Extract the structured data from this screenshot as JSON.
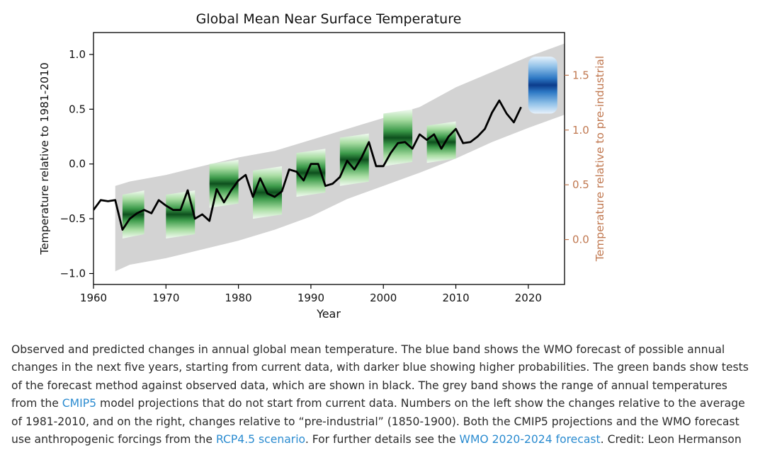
{
  "chart_data": {
    "type": "line",
    "title": "Global Mean Near Surface Temperature",
    "xlabel": "Year",
    "ylabel": "Temperature relative to 1981-2010",
    "ylabel_right": "Temperature relative to pre-industrial",
    "xlim": [
      1960,
      2025
    ],
    "ylim": [
      -1.1,
      1.2
    ],
    "ylim_right_offset": 0.69,
    "x_ticks": [
      "1960",
      "1970",
      "1980",
      "1990",
      "2000",
      "2010",
      "2020"
    ],
    "y_ticks": [
      "1.0",
      "0.5",
      "0.0",
      "−0.5",
      "−1.0"
    ],
    "y_right_ticks": [
      "1.5",
      "1.0",
      "0.5",
      "0.0"
    ],
    "right_axis_color": "#c07850",
    "grid": false,
    "observed": {
      "color": "#000000",
      "x": [
        1960,
        1961,
        1962,
        1963,
        1964,
        1965,
        1966,
        1967,
        1968,
        1969,
        1970,
        1971,
        1972,
        1973,
        1974,
        1975,
        1976,
        1977,
        1978,
        1979,
        1980,
        1981,
        1982,
        1983,
        1984,
        1985,
        1986,
        1987,
        1988,
        1989,
        1990,
        1991,
        1992,
        1993,
        1994,
        1995,
        1996,
        1997,
        1998,
        1999,
        2000,
        2001,
        2002,
        2003,
        2004,
        2005,
        2006,
        2007,
        2008,
        2009,
        2010,
        2011,
        2012,
        2013,
        2014,
        2015,
        2016,
        2017,
        2018,
        2019
      ],
      "y": [
        -0.42,
        -0.33,
        -0.34,
        -0.33,
        -0.6,
        -0.5,
        -0.45,
        -0.42,
        -0.45,
        -0.33,
        -0.38,
        -0.42,
        -0.42,
        -0.24,
        -0.5,
        -0.46,
        -0.52,
        -0.23,
        -0.35,
        -0.24,
        -0.15,
        -0.1,
        -0.3,
        -0.13,
        -0.27,
        -0.3,
        -0.25,
        -0.05,
        -0.07,
        -0.15,
        0.0,
        0.0,
        -0.2,
        -0.18,
        -0.12,
        0.03,
        -0.05,
        0.06,
        0.2,
        -0.02,
        -0.02,
        0.1,
        0.19,
        0.2,
        0.14,
        0.27,
        0.22,
        0.27,
        0.14,
        0.25,
        0.32,
        0.19,
        0.2,
        0.25,
        0.32,
        0.47,
        0.58,
        0.46,
        0.38,
        0.52
      ]
    },
    "cmip5_range": {
      "color": "#d3d3d3",
      "x": [
        1963,
        1965,
        1970,
        1975,
        1980,
        1985,
        1990,
        1995,
        2000,
        2005,
        2010,
        2015,
        2020,
        2025
      ],
      "low": [
        -0.98,
        -0.92,
        -0.86,
        -0.78,
        -0.7,
        -0.6,
        -0.48,
        -0.32,
        -0.2,
        -0.08,
        0.05,
        0.2,
        0.33,
        0.45
      ],
      "high": [
        -0.2,
        -0.16,
        -0.1,
        -0.02,
        0.06,
        0.12,
        0.22,
        0.32,
        0.42,
        0.52,
        0.7,
        0.84,
        0.98,
        1.1
      ]
    },
    "hindcasts": [
      {
        "start": 1964,
        "end": 1967,
        "mid": -0.48,
        "spread": 0.2
      },
      {
        "start": 1970,
        "end": 1974,
        "mid": -0.48,
        "spread": 0.2
      },
      {
        "start": 1976,
        "end": 1980,
        "mid": -0.2,
        "spread": 0.2
      },
      {
        "start": 1982,
        "end": 1986,
        "mid": -0.28,
        "spread": 0.22
      },
      {
        "start": 1988,
        "end": 1992,
        "mid": -0.1,
        "spread": 0.2
      },
      {
        "start": 1994,
        "end": 1998,
        "mid": 0.02,
        "spread": 0.22
      },
      {
        "start": 2000,
        "end": 2004,
        "mid": 0.22,
        "spread": 0.24
      },
      {
        "start": 2006,
        "end": 2010,
        "mid": 0.18,
        "spread": 0.17
      }
    ],
    "forecast": {
      "start": 2020,
      "end": 2024,
      "mid": 0.72,
      "spread": 0.26,
      "color": "#0c3c8c"
    }
  },
  "caption": {
    "t1": "Observed and predicted changes in annual global mean temperature. The blue band shows the WMO forecast of possible annual changes in the next five years, starting from current data, with darker blue showing higher probabilities. The green bands show tests of the forecast method against observed data, which are shown in black. The grey band shows the range of annual temperatures from the ",
    "link1": "CMIP5",
    "t2": " model projections that do not start from current data. Numbers on the left show the changes relative to the average of 1981-2010, and on the right, changes relative to “pre-industrial” (1850-1900). Both the CMIP5 projections and the WMO forecast use anthropogenic forcings from the ",
    "link2": "RCP4.5 scenario",
    "t3": ". For further details see the ",
    "link3": "WMO 2020-2024 forecast",
    "t4": ". Credit: Leon Hermanson"
  }
}
